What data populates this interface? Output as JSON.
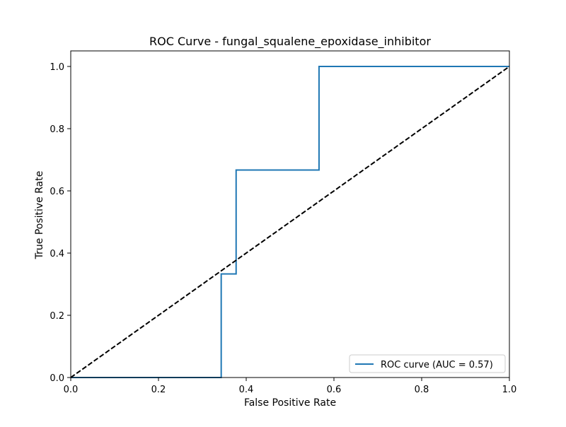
{
  "chart_data": {
    "type": "line",
    "title": "ROC Curve - fungal_squalene_epoxidase_inhibitor",
    "xlabel": "False Positive Rate",
    "ylabel": "True Positive Rate",
    "xlim": [
      0.0,
      1.0
    ],
    "ylim": [
      0.0,
      1.05
    ],
    "xticks": [
      0.0,
      0.2,
      0.4,
      0.6,
      0.8,
      1.0
    ],
    "xtick_labels": [
      "0.0",
      "0.2",
      "0.4",
      "0.6",
      "0.8",
      "1.0"
    ],
    "yticks": [
      0.0,
      0.2,
      0.4,
      0.6,
      0.8,
      1.0
    ],
    "ytick_labels": [
      "0.0",
      "0.2",
      "0.4",
      "0.6",
      "0.8",
      "1.0"
    ],
    "grid": false,
    "legend_position": "lower-right",
    "series": [
      {
        "name": "ROC curve (AUC = 0.57)",
        "color": "#1f77b4",
        "style": "solid",
        "x": [
          0.0,
          0.343,
          0.343,
          0.377,
          0.377,
          0.566,
          0.566,
          1.0
        ],
        "y": [
          0.0,
          0.0,
          0.333,
          0.333,
          0.667,
          0.667,
          1.0,
          1.0
        ]
      },
      {
        "color": "#000000",
        "style": "dashed",
        "x": [
          0.0,
          1.0
        ],
        "y": [
          0.0,
          1.0
        ]
      }
    ]
  }
}
